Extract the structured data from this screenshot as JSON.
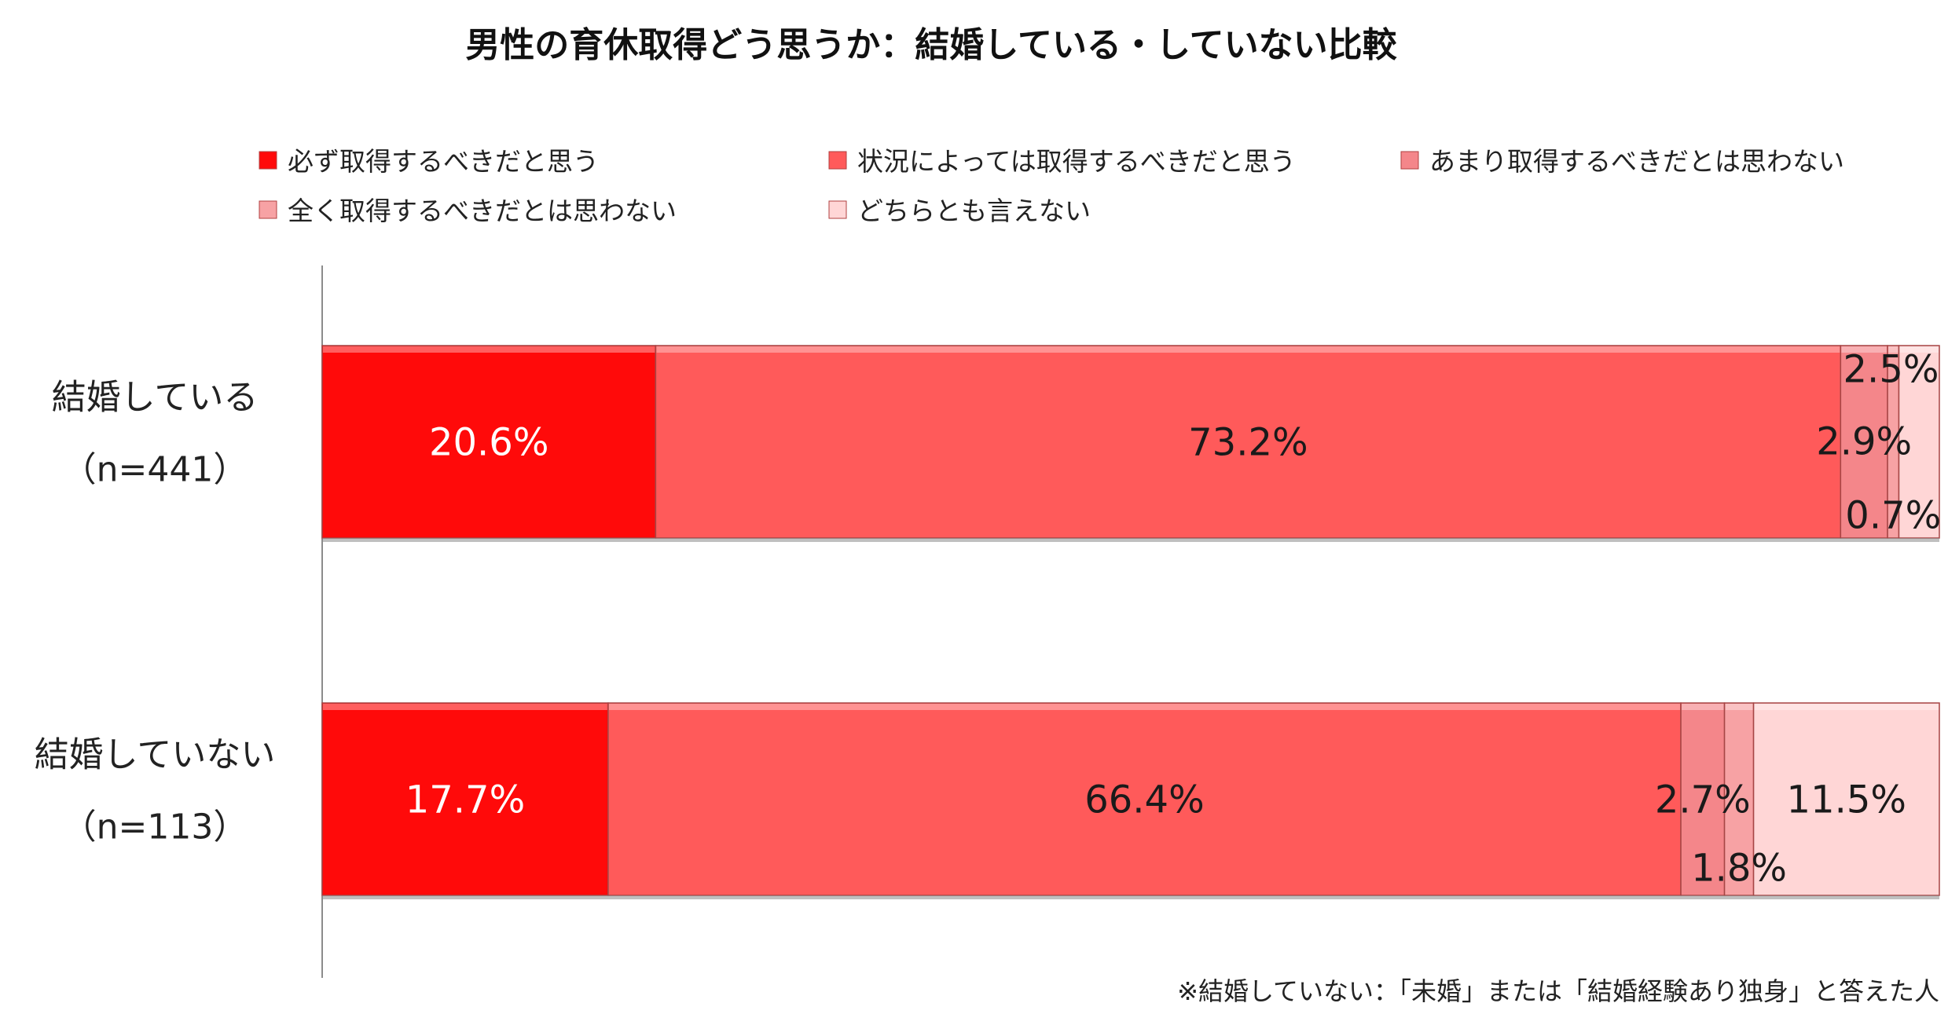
{
  "chart_data": {
    "type": "bar",
    "orientation": "horizontal",
    "stacked": true,
    "percent_scale": true,
    "title": "男性の育休取得どう思うか：結婚している・していない比較",
    "categories": [
      {
        "label": "結婚している",
        "n": "（n=441）"
      },
      {
        "label": "結婚していない",
        "n": "（n=113）"
      }
    ],
    "series": [
      {
        "name": "必ず取得するべきだと思う",
        "color": "#ff0a0a",
        "values": [
          20.6,
          17.7
        ],
        "labels": [
          "20.6%",
          "17.7%"
        ]
      },
      {
        "name": "状況によっては取得するべきだと思う",
        "color": "#ff5a5a",
        "values": [
          73.2,
          66.4
        ],
        "labels": [
          "73.2%",
          "66.4%"
        ]
      },
      {
        "name": "あまり取得するべきだとは思わない",
        "color": "#f4868a",
        "values": [
          2.9,
          2.7
        ],
        "labels": [
          "2.9%",
          "2.7%"
        ]
      },
      {
        "name": "全く取得するべきだとは思わない",
        "color": "#f7a2a4",
        "values": [
          0.7,
          1.8
        ],
        "labels": [
          "0.7%",
          "1.8%"
        ]
      },
      {
        "name": "どちらとも言えない",
        "color": "#ffd6d6",
        "values": [
          2.5,
          11.5
        ],
        "labels": [
          "2.5%",
          "11.5%"
        ]
      }
    ],
    "legend_position": "top",
    "note": "※結婚していない：「未婚」または「結婚経験あり独身」と答えた人"
  }
}
